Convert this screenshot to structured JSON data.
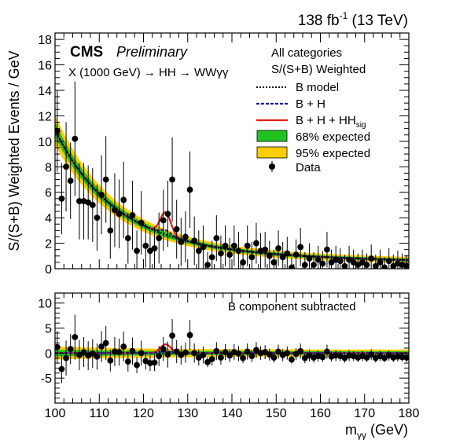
{
  "chart_data": [
    {
      "type": "line",
      "panel": "main",
      "ylabel": "S/(S+B) Weighted Events / GeV",
      "ylim": [
        0,
        18.5
      ],
      "xlim": [
        100,
        180
      ],
      "yticks": [
        "0",
        "2",
        "4",
        "6",
        "8",
        "10",
        "12",
        "14",
        "16",
        "18"
      ],
      "header_top_right": {
        "lumi": "138 fb",
        "lumi_sup": "-1",
        "energy": " (13 TeV)"
      },
      "experiment": "CMS",
      "status": "Preliminary",
      "process": "X (1000 GeV) → HH → WWγγ",
      "legend_title_1": "All categories",
      "legend_title_2": "S/(S+B) Weighted",
      "legend": [
        {
          "label": "B model",
          "style": "dotted",
          "color": "#000000"
        },
        {
          "label": "B + H",
          "style": "dashed",
          "color": "#1a1aa6"
        },
        {
          "label": "B + H + HH",
          "sub": "sig",
          "style": "solid",
          "color": "#e41a1c"
        },
        {
          "label": "68% expected",
          "style": "band",
          "color": "#1fc21f"
        },
        {
          "label": "95% expected",
          "style": "band",
          "color": "#ffcc00"
        },
        {
          "label": "Data",
          "style": "marker",
          "color": "#000000"
        }
      ],
      "background_model": {
        "form": "9.3*exp(-(m-100)/13.5)+1.6*exp(-(m-100)/90)",
        "band68_rel": 0.045,
        "band95_rel": 0.09
      },
      "higgs_peak": {
        "mass": 125,
        "height_BH": 0.35,
        "height_HH": 1.75,
        "sigma": 1.2
      },
      "data": {
        "x": [
          100.5,
          101.5,
          102.5,
          103.5,
          104.5,
          105.5,
          106.5,
          107.5,
          108.5,
          109.5,
          110.5,
          111.5,
          112.5,
          113.5,
          114.5,
          115.5,
          116.5,
          117.5,
          118.5,
          119.5,
          120.5,
          121.5,
          122.5,
          123.5,
          124.5,
          125.5,
          126.5,
          127.5,
          128.5,
          129.5,
          130.5,
          131.5,
          132.5,
          133.5,
          134.5,
          135.5,
          136.5,
          137.5,
          138.5,
          139.5,
          140.5,
          141.5,
          142.5,
          143.5,
          144.5,
          145.5,
          146.5,
          147.5,
          148.5,
          149.5,
          150.5,
          151.5,
          152.5,
          153.5,
          154.5,
          155.5,
          156.5,
          157.5,
          158.5,
          159.5,
          160.5,
          161.5,
          162.5,
          163.5,
          164.5,
          165.5,
          166.5,
          167.5,
          168.5,
          169.5,
          170.5,
          171.5,
          172.5,
          173.5,
          174.5,
          175.5,
          176.5,
          177.5,
          178.5,
          179.5
        ],
        "y": [
          10.8,
          5.5,
          8.0,
          6.9,
          10.2,
          5.3,
          5.3,
          5.2,
          5.0,
          4.0,
          5.8,
          7.0,
          3.0,
          4.6,
          4.3,
          5.4,
          2.4,
          4.2,
          1.4,
          3.6,
          1.8,
          1.4,
          1.6,
          2.4,
          3.8,
          4.3,
          7.0,
          3.1,
          2.1,
          2.5,
          6.2,
          2.2,
          1.4,
          1.7,
          0.3,
          0.9,
          2.4,
          1.2,
          1.8,
          1.1,
          1.8,
          1.4,
          0.5,
          1.8,
          0.9,
          2.0,
          1.4,
          1.5,
          1.0,
          0.5,
          1.6,
          0.9,
          1.2,
          0.1,
          1.1,
          1.7,
          0.3,
          0.8,
          0.3,
          0.7,
          0.4,
          1.5,
          0.5,
          0.7,
          0.6,
          0.2,
          0.7,
          0.5,
          0.3,
          0.5,
          0.3,
          0.8,
          0.2,
          0.5,
          0.1,
          0.6,
          0.2,
          0.4,
          0.3,
          0.2
        ],
        "err": [
          3.2,
          2.8,
          3.5,
          3.0,
          4.5,
          3.0,
          3.0,
          2.9,
          2.9,
          2.6,
          3.1,
          3.4,
          2.2,
          2.9,
          2.7,
          3.0,
          2.0,
          2.7,
          1.6,
          2.5,
          1.7,
          1.6,
          1.7,
          2.0,
          2.4,
          2.6,
          3.3,
          2.3,
          1.9,
          2.0,
          3.0,
          1.9,
          1.6,
          1.7,
          1.0,
          1.3,
          1.8,
          1.4,
          1.6,
          1.3,
          1.6,
          1.5,
          1.0,
          1.6,
          1.2,
          1.6,
          1.4,
          1.4,
          1.2,
          1.0,
          1.4,
          1.2,
          1.3,
          0.8,
          1.2,
          1.5,
          1.0,
          1.2,
          1.0,
          1.1,
          1.0,
          1.4,
          1.0,
          1.1,
          1.0,
          0.9,
          1.1,
          1.0,
          0.9,
          1.0,
          0.9,
          1.1,
          0.9,
          1.0,
          0.8,
          1.0,
          0.9,
          1.0,
          0.9,
          0.9
        ]
      }
    },
    {
      "type": "scatter",
      "panel": "ratio",
      "xlabel": "m",
      "xlabel_sub": "γγ",
      "xlabel_unit": " (GeV)",
      "xlim": [
        100,
        180
      ],
      "ylim": [
        -10,
        12
      ],
      "xticks": [
        "100",
        "110",
        "120",
        "130",
        "140",
        "150",
        "160",
        "170",
        "180"
      ],
      "yticks": [
        "-5",
        "0",
        "5",
        "10"
      ],
      "annotation": "B component subtracted",
      "residual_peak": {
        "mass": 125,
        "height_BH": 0.35,
        "height_HH": 1.75,
        "sigma": 1.2
      },
      "data": {
        "x": [
          100.5,
          101.5,
          102.5,
          103.5,
          104.5,
          105.5,
          106.5,
          107.5,
          108.5,
          109.5,
          110.5,
          111.5,
          112.5,
          113.5,
          114.5,
          115.5,
          116.5,
          117.5,
          118.5,
          119.5,
          120.5,
          121.5,
          122.5,
          123.5,
          124.5,
          125.5,
          126.5,
          127.5,
          128.5,
          129.5,
          130.5,
          131.5,
          132.5,
          133.5,
          134.5,
          135.5,
          136.5,
          137.5,
          138.5,
          139.5,
          140.5,
          141.5,
          142.5,
          143.5,
          144.5,
          145.5,
          146.5,
          147.5,
          148.5,
          149.5,
          150.5,
          151.5,
          152.5,
          153.5,
          154.5,
          155.5,
          156.5,
          157.5,
          158.5,
          159.5,
          160.5,
          161.5,
          162.5,
          163.5,
          164.5,
          165.5,
          166.5,
          167.5,
          168.5,
          169.5,
          170.5,
          171.5,
          172.5,
          173.5,
          174.5,
          175.5,
          176.5,
          177.5,
          178.5,
          179.5
        ],
        "y": [
          1.2,
          -3.2,
          -1.0,
          0.8,
          3.2,
          -0.4,
          0.2,
          -0.5,
          -0.1,
          -0.7,
          1.3,
          2.0,
          -1.5,
          0.3,
          0.2,
          1.3,
          -1.7,
          0.4,
          -2.4,
          0.0,
          -1.6,
          -2.0,
          -1.9,
          -0.6,
          0.8,
          -0.3,
          3.5,
          0.3,
          -0.4,
          0.1,
          3.6,
          0.0,
          -0.9,
          -0.4,
          -1.8,
          -1.2,
          0.4,
          -0.9,
          0.2,
          -0.5,
          0.2,
          -0.1,
          -1.0,
          0.3,
          -0.6,
          0.6,
          0.0,
          0.2,
          -0.3,
          -0.9,
          0.3,
          -0.4,
          0.0,
          -1.3,
          -0.2,
          0.4,
          -1.0,
          -0.5,
          -0.9,
          -0.6,
          -0.8,
          0.3,
          -0.7,
          -0.5,
          -0.6,
          -1.0,
          -0.5,
          -0.6,
          -0.9,
          -0.6,
          -0.9,
          -0.3,
          -1.0,
          -0.6,
          -1.0,
          -0.5,
          -0.9,
          -0.7,
          -0.8,
          -0.9
        ],
        "err": [
          3.2,
          2.8,
          3.5,
          3.0,
          4.5,
          3.0,
          3.0,
          2.9,
          2.9,
          2.6,
          3.1,
          3.4,
          2.2,
          2.9,
          2.7,
          3.0,
          2.0,
          2.7,
          1.6,
          2.5,
          1.7,
          1.6,
          1.7,
          2.0,
          2.4,
          2.6,
          3.3,
          2.3,
          1.9,
          2.0,
          3.0,
          1.9,
          1.6,
          1.7,
          1.0,
          1.3,
          1.8,
          1.4,
          1.6,
          1.3,
          1.6,
          1.5,
          1.0,
          1.6,
          1.2,
          1.6,
          1.4,
          1.4,
          1.2,
          1.0,
          1.4,
          1.2,
          1.3,
          0.8,
          1.2,
          1.5,
          1.0,
          1.2,
          1.0,
          1.1,
          1.0,
          1.4,
          1.0,
          1.1,
          1.0,
          0.9,
          1.1,
          1.0,
          0.9,
          1.0,
          0.9,
          1.1,
          0.9,
          1.0,
          0.8,
          1.0,
          0.9,
          1.0,
          0.9,
          0.9
        ]
      }
    }
  ]
}
